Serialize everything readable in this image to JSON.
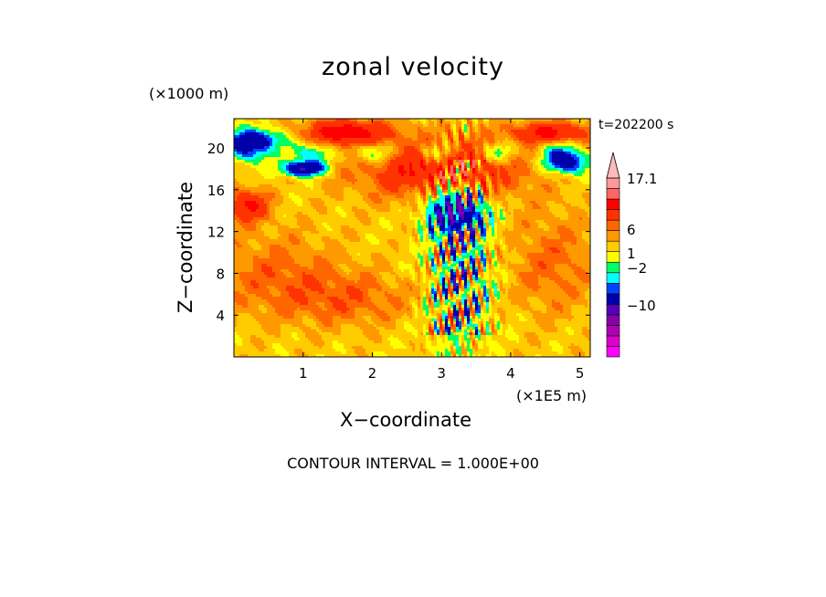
{
  "chart_data": {
    "type": "heatmap",
    "title": "zonal velocity",
    "xlabel": "X−coordinate",
    "ylabel": "Z−coordinate",
    "x_unit": "(×1E5 m)",
    "y_unit": "(×1000 m)",
    "time_label": "t=202200 s",
    "xlim": [
      0,
      5.15
    ],
    "ylim": [
      0,
      22.8
    ],
    "x_ticks": [
      1,
      2,
      3,
      4,
      5
    ],
    "y_ticks": [
      4,
      8,
      12,
      16,
      20
    ],
    "contour_interval": "CONTOUR INTERVAL = 1.000E+00",
    "colorbar": {
      "max_label": "17.1",
      "labels": [
        "17.1",
        "6",
        "1",
        "−2",
        "−10"
      ],
      "label_values": [
        17.1,
        6,
        1,
        -2,
        -10
      ],
      "levels": [
        -22,
        -18,
        -14,
        -10,
        -6,
        -3,
        -2,
        -1,
        0,
        1,
        2,
        3,
        4,
        6,
        9,
        12,
        15,
        17.1
      ],
      "colors": [
        "#ff00ff",
        "#dd00cc",
        "#b000b0",
        "#8800aa",
        "#5500bb",
        "#0000aa",
        "#0044ff",
        "#00ffff",
        "#00ff66",
        "#ffff00",
        "#ffcc00",
        "#ff9900",
        "#ff6600",
        "#ff3300",
        "#ff0000",
        "#ff6666",
        "#ff9999",
        "#ffbbbb"
      ]
    },
    "field_note_colors": {
      "yellow": "#ffff00",
      "green": "#33ff33",
      "cyan": "#00ffff",
      "blue": "#0000cc",
      "orange": "#ff9900",
      "red": "#ff6600"
    },
    "features": [
      {
        "type": "blob",
        "x": 3.0,
        "z": 18.0,
        "rx": 1.2,
        "rz": 3.0,
        "v": 5
      },
      {
        "type": "blob",
        "x": 1.6,
        "z": 21.5,
        "rx": 0.6,
        "rz": 1.2,
        "v": 6
      },
      {
        "type": "blob",
        "x": 4.6,
        "z": 21.5,
        "rx": 0.6,
        "rz": 1.0,
        "v": 5
      },
      {
        "type": "blob",
        "x": 0.3,
        "z": 20.8,
        "rx": 0.4,
        "rz": 1.0,
        "v": -6
      },
      {
        "type": "blob",
        "x": 1.0,
        "z": 18.0,
        "rx": 0.3,
        "rz": 0.7,
        "v": -8
      },
      {
        "type": "blob",
        "x": 4.8,
        "z": 18.5,
        "rx": 0.3,
        "rz": 1.0,
        "v": -6
      },
      {
        "type": "blob",
        "x": 0.6,
        "z": 8.0,
        "rx": 1.0,
        "rz": 4.0,
        "v": 2
      },
      {
        "type": "blob",
        "x": 4.6,
        "z": 9.0,
        "rx": 0.7,
        "rz": 5.0,
        "v": 2
      },
      {
        "type": "blob",
        "x": 1.7,
        "z": 5.5,
        "rx": 1.0,
        "rz": 2.5,
        "v": 2
      },
      {
        "type": "blob",
        "x": 0.2,
        "z": 14.5,
        "rx": 0.3,
        "rz": 1.5,
        "v": 5
      },
      {
        "type": "blob",
        "x": 3.3,
        "z": 8.0,
        "rx": 0.5,
        "rz": 7.0,
        "v": -2
      },
      {
        "type": "blob",
        "x": 3.2,
        "z": 14.0,
        "rx": 0.4,
        "rz": 2.0,
        "v": -8
      }
    ]
  }
}
